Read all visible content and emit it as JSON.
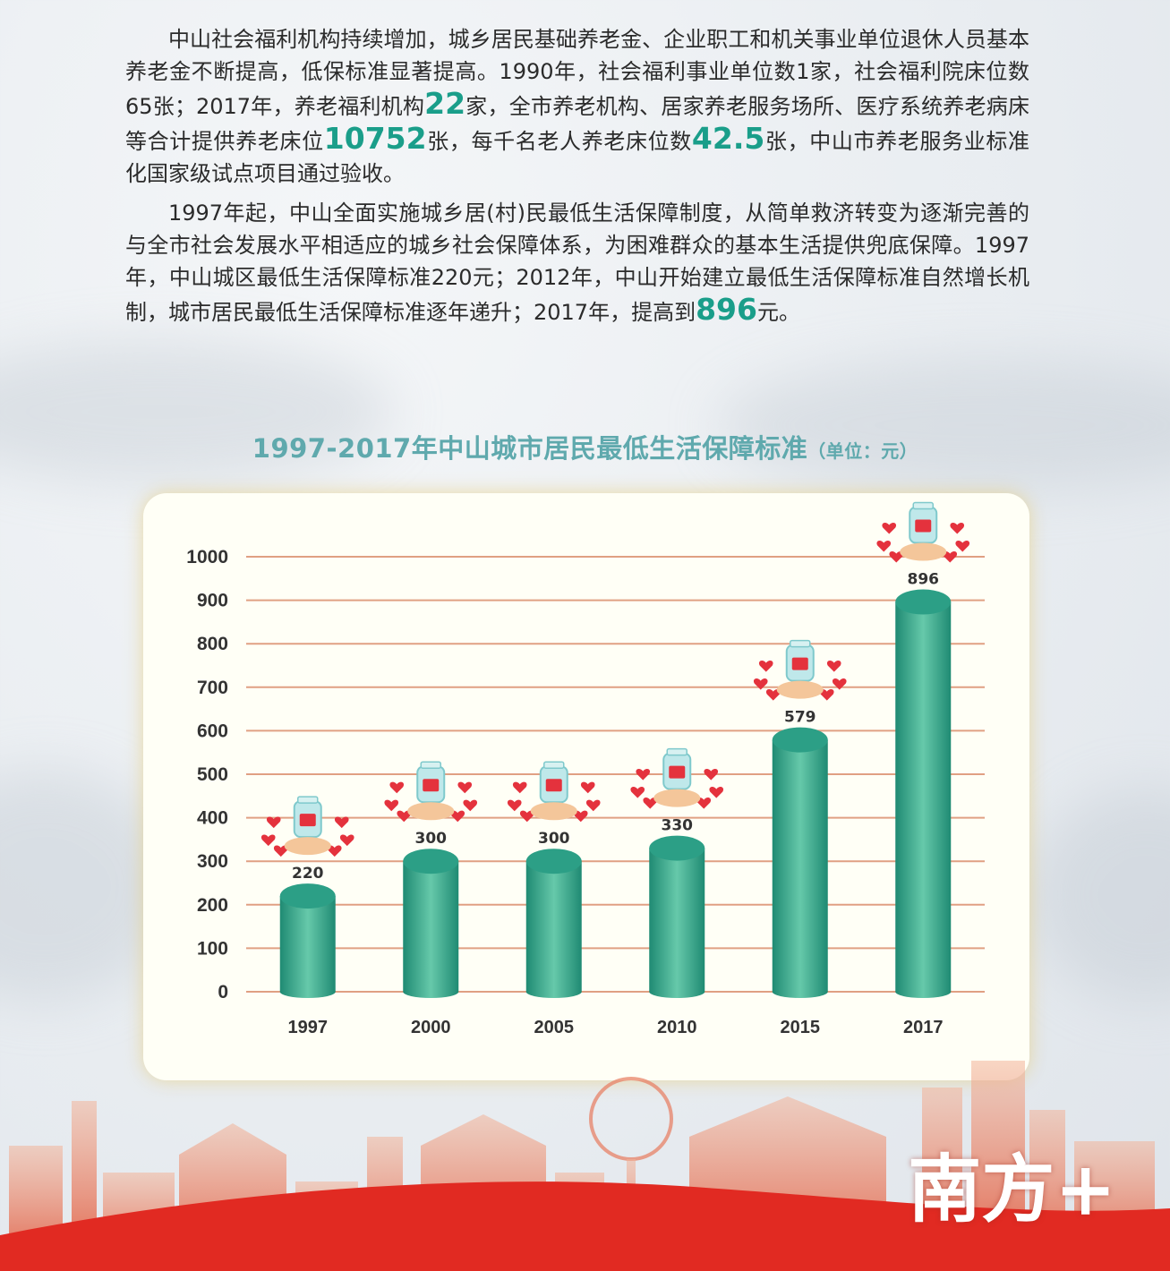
{
  "article": {
    "p1": [
      {
        "t": "中山社会福利机构持续增加，城乡居民基础养老金、企业职工和机关事业单位退休人员基本养老金不断提高，低保标准显著提高。1990年，社会福利事业单位数1家，社会福利院床位数65张；2017年，养老福利机构"
      },
      {
        "t": "22",
        "hl": true
      },
      {
        "t": "家，全市养老机构、居家养老服务场所、医疗系统养老病床等合计提供养老床位"
      },
      {
        "t": "10752",
        "hl": true
      },
      {
        "t": "张，每千名老人养老床位数"
      },
      {
        "t": "42.5",
        "hl": true
      },
      {
        "t": "张，中山市养老服务业标准化国家级试点项目通过验收。"
      }
    ],
    "p2": [
      {
        "t": "1997年起，中山全面实施城乡居(村)民最低生活保障制度，从简单救济转变为逐渐完善的与全市社会发展水平相适应的城乡社会保障体系，为困难群众的基本生活提供兜底保障。1997年，中山城区最低生活保障标准220元；2012年，中山开始建立最低生活保障标准自然增长机制，城市居民最低生活保障标准逐年递升；2017年，提高到"
      },
      {
        "t": "896",
        "hl": true
      },
      {
        "t": "元。"
      }
    ]
  },
  "chart_title": {
    "main": "1997-2017年中山城市居民最低生活保障标准",
    "unit": "（单位：元）"
  },
  "chart_data": {
    "type": "bar",
    "categories": [
      "1997",
      "2000",
      "2005",
      "2010",
      "2015",
      "2017"
    ],
    "values": [
      220,
      300,
      300,
      330,
      579,
      896
    ],
    "ylim": [
      0,
      1000
    ],
    "yticks": [
      0,
      100,
      200,
      300,
      400,
      500,
      600,
      700,
      800,
      900,
      1000
    ],
    "grid": true,
    "colors": {
      "bar_top": "#2c9f86",
      "bar_mid": "#66c9aa",
      "bar_dark": "#1f8a73",
      "grid": "#e0a083",
      "label": "#333333"
    }
  },
  "watermark": "南方+"
}
